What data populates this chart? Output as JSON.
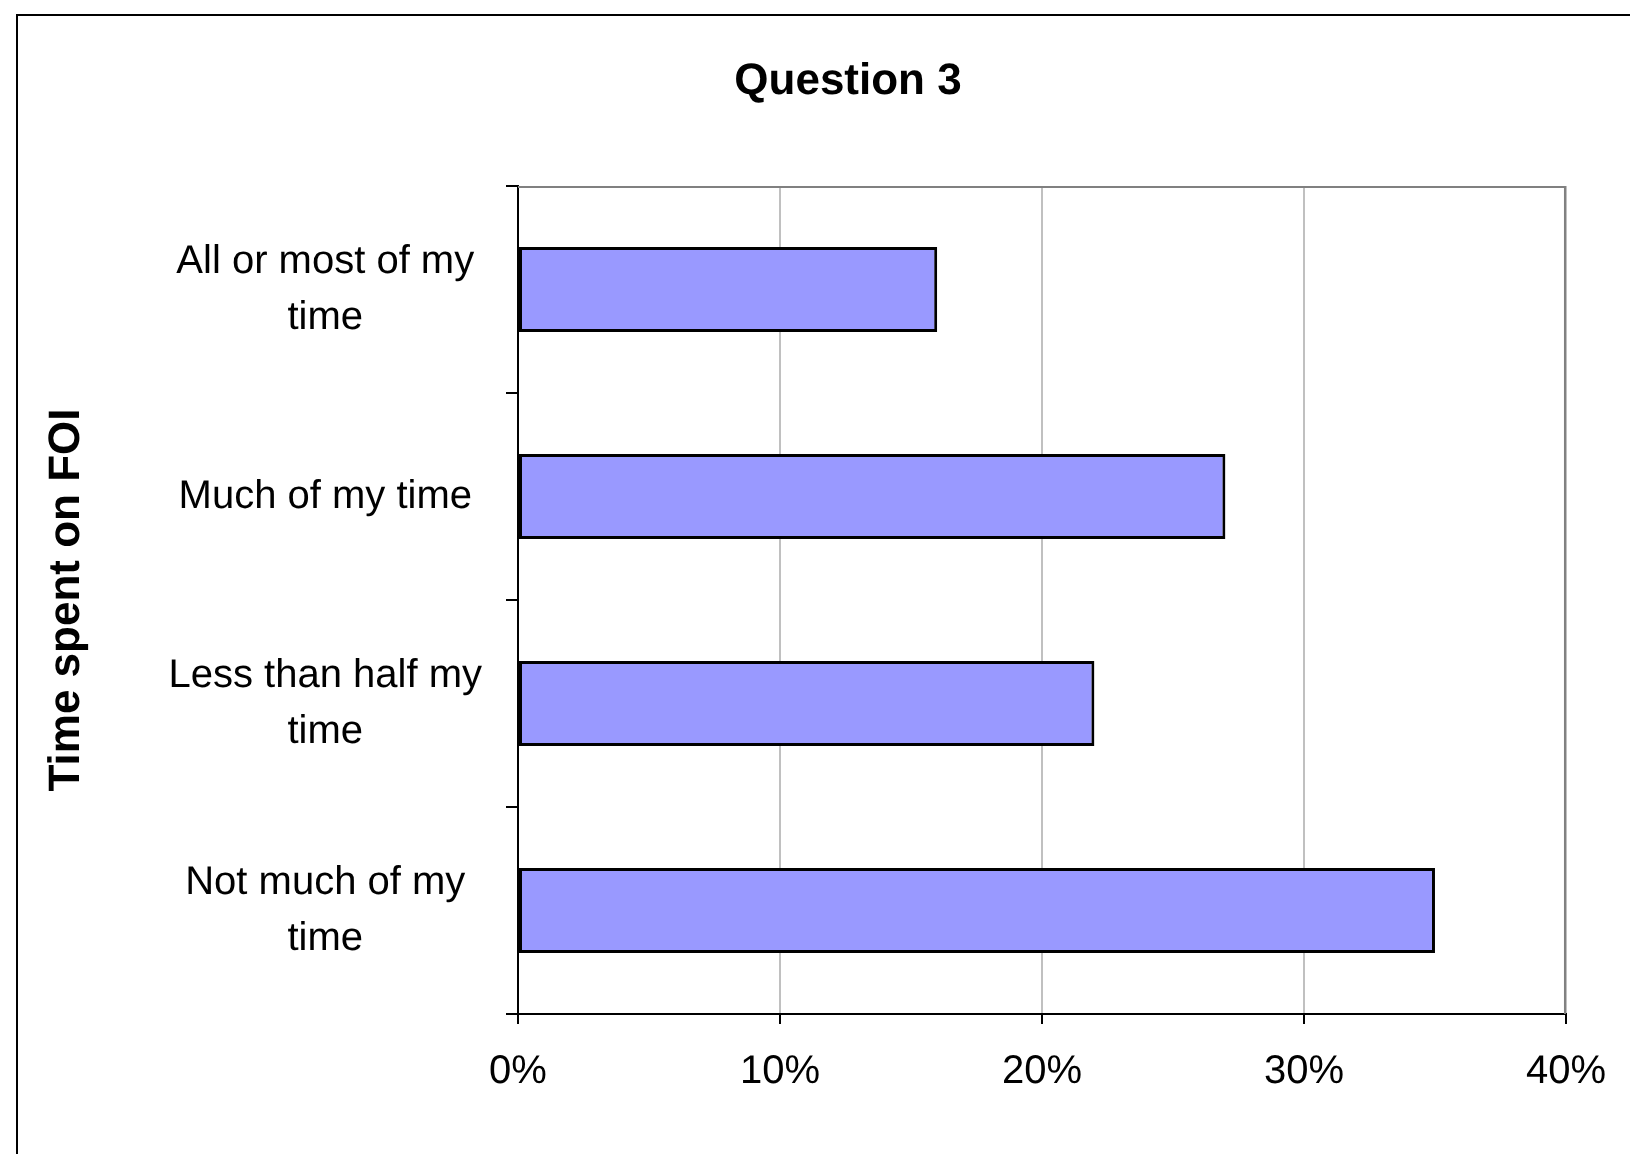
{
  "chart_data": {
    "type": "bar",
    "orientation": "horizontal",
    "title": "Question 3",
    "ylabel": "Time spent on FOI",
    "categories": [
      "All or most of my time",
      "Much of my time",
      "Less than half my time",
      "Not much of my time"
    ],
    "values": [
      16,
      27,
      22,
      35
    ],
    "color": "#9999ff",
    "xlim": [
      0,
      40
    ],
    "xticks": [
      {
        "value": 0,
        "label": "0%"
      },
      {
        "value": 10,
        "label": "10%"
      },
      {
        "value": 20,
        "label": "20%"
      },
      {
        "value": 30,
        "label": "30%"
      },
      {
        "value": 40,
        "label": "40%"
      }
    ],
    "grid": "x"
  }
}
